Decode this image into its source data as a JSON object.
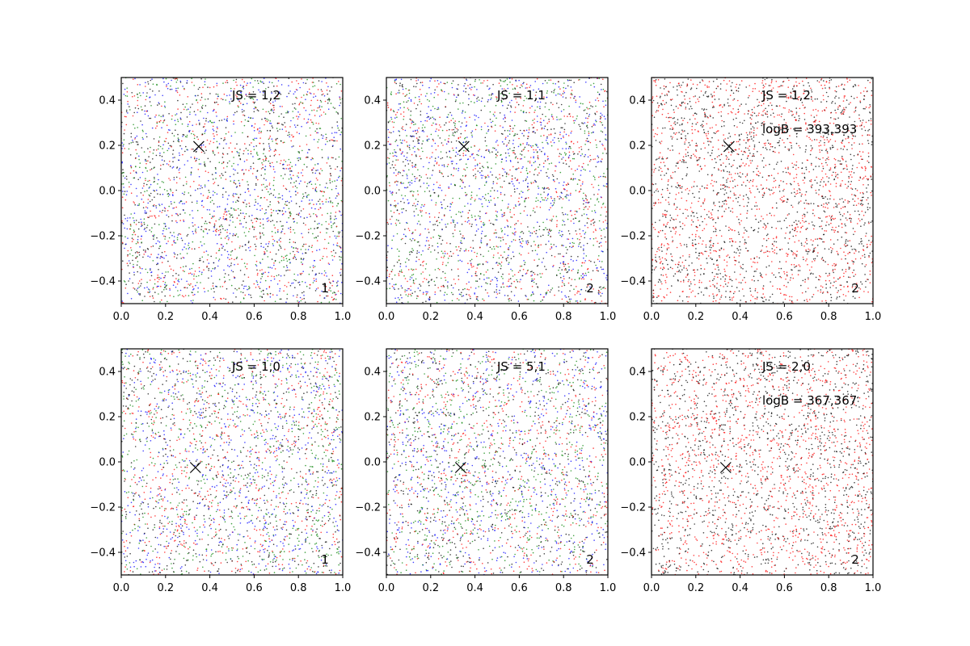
{
  "chart_data": [
    {
      "type": "scatter",
      "xlim": [
        0.0,
        1.0
      ],
      "ylim": [
        -0.5,
        0.5
      ],
      "xticks": [
        "0.0",
        "0.2",
        "0.4",
        "0.6",
        "0.8",
        "1.0"
      ],
      "yticks": [
        "−0.4",
        "−0.2",
        "0.0",
        "0.2",
        "0.4"
      ],
      "grid": false,
      "point_colors": [
        "#0000ff",
        "#ff0000",
        "#008000",
        "#000000"
      ],
      "marker": {
        "x": 0.35,
        "y": 0.195
      },
      "annotations": {
        "js": "JS = 1,2",
        "logb": "",
        "index": "1"
      }
    },
    {
      "type": "scatter",
      "xlim": [
        0.0,
        1.0
      ],
      "ylim": [
        -0.5,
        0.5
      ],
      "xticks": [
        "0.0",
        "0.2",
        "0.4",
        "0.6",
        "0.8",
        "1.0"
      ],
      "yticks": [
        "−0.4",
        "−0.2",
        "0.0",
        "0.2",
        "0.4"
      ],
      "grid": false,
      "point_colors": [
        "#0000ff",
        "#ff0000",
        "#008000",
        "#000000"
      ],
      "marker": {
        "x": 0.35,
        "y": 0.195
      },
      "annotations": {
        "js": "JS = 1,1",
        "logb": "",
        "index": "2"
      }
    },
    {
      "type": "scatter",
      "xlim": [
        0.0,
        1.0
      ],
      "ylim": [
        -0.5,
        0.5
      ],
      "xticks": [
        "0.0",
        "0.2",
        "0.4",
        "0.6",
        "0.8",
        "1.0"
      ],
      "yticks": [
        "−0.4",
        "−0.2",
        "0.0",
        "0.2",
        "0.4"
      ],
      "grid": false,
      "point_colors": [
        "#ff0000",
        "#000000"
      ],
      "marker": {
        "x": 0.35,
        "y": 0.195
      },
      "annotations": {
        "js": "JS = 1,2",
        "logb": "logB = 393,393",
        "index": "2"
      }
    },
    {
      "type": "scatter",
      "xlim": [
        0.0,
        1.0
      ],
      "ylim": [
        -0.5,
        0.5
      ],
      "xticks": [
        "0.0",
        "0.2",
        "0.4",
        "0.6",
        "0.8",
        "1.0"
      ],
      "yticks": [
        "−0.4",
        "−0.2",
        "0.0",
        "0.2",
        "0.4"
      ],
      "grid": false,
      "point_colors": [
        "#0000ff",
        "#ff0000",
        "#008000",
        "#000000"
      ],
      "marker": {
        "x": 0.335,
        "y": -0.025
      },
      "annotations": {
        "js": "JS = 1,0",
        "logb": "",
        "index": "1"
      }
    },
    {
      "type": "scatter",
      "xlim": [
        0.0,
        1.0
      ],
      "ylim": [
        -0.5,
        0.5
      ],
      "xticks": [
        "0.0",
        "0.2",
        "0.4",
        "0.6",
        "0.8",
        "1.0"
      ],
      "yticks": [
        "−0.4",
        "−0.2",
        "0.0",
        "0.2",
        "0.4"
      ],
      "grid": false,
      "point_colors": [
        "#0000ff",
        "#ff0000",
        "#008000",
        "#000000"
      ],
      "marker": {
        "x": 0.335,
        "y": -0.025
      },
      "annotations": {
        "js": "JS = 5,1",
        "logb": "",
        "index": "2"
      }
    },
    {
      "type": "scatter",
      "xlim": [
        0.0,
        1.0
      ],
      "ylim": [
        -0.5,
        0.5
      ],
      "xticks": [
        "0.0",
        "0.2",
        "0.4",
        "0.6",
        "0.8",
        "1.0"
      ],
      "yticks": [
        "−0.4",
        "−0.2",
        "0.0",
        "0.2",
        "0.4"
      ],
      "grid": false,
      "point_colors": [
        "#ff0000",
        "#000000"
      ],
      "marker": {
        "x": 0.335,
        "y": -0.025
      },
      "annotations": {
        "js": "JS = 2,0",
        "logb": "logB = 367,367",
        "index": "2"
      }
    }
  ]
}
